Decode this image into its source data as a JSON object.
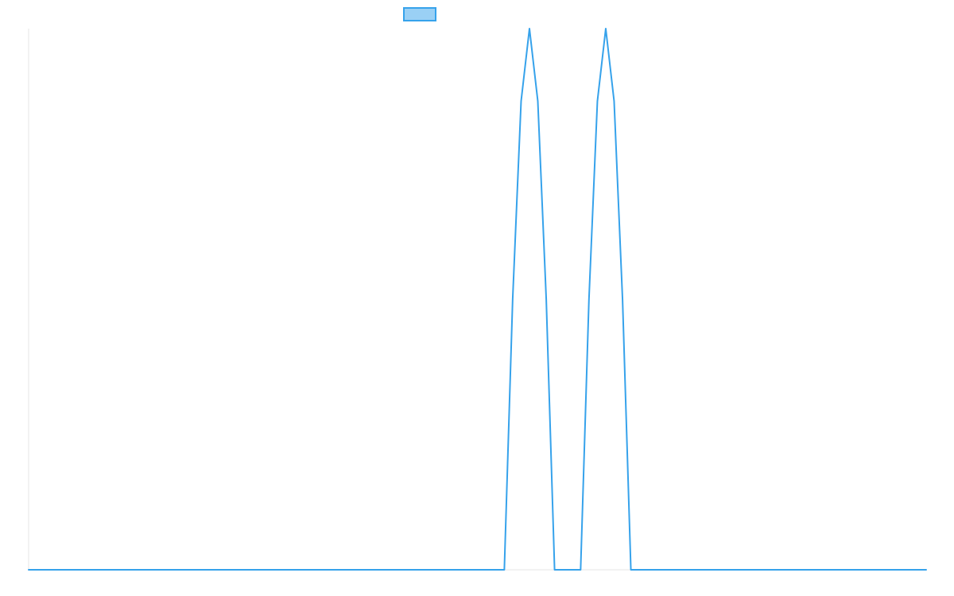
{
  "chart_data": {
    "type": "line",
    "title": "",
    "xlabel": "",
    "ylabel": "",
    "legend": {
      "placement": "top-center",
      "entries": [
        {
          "label": "",
          "stroke": "#36A2EB",
          "fill": "#9AD0F5"
        }
      ]
    },
    "grid": false,
    "xlim": [
      0,
      100
    ],
    "ylim": [
      0,
      1
    ],
    "series": [
      {
        "color": "#36A2EB",
        "x": [
          0,
          53,
          53.93,
          54.87,
          55.8,
          56.73,
          57.67,
          58.6,
          59.5,
          61.5,
          62.43,
          63.37,
          64.3,
          65.23,
          66.17,
          67.1,
          68,
          100
        ],
        "y": [
          0,
          0,
          0.5,
          0.866,
          1,
          0.866,
          0.5,
          0,
          0,
          0,
          0.5,
          0.866,
          1,
          0.866,
          0.5,
          0,
          0,
          0
        ]
      }
    ]
  },
  "colors": {
    "line": "#36A2EB",
    "legend_fill": "#9AD0F5",
    "axis": "#e5e5e5"
  }
}
